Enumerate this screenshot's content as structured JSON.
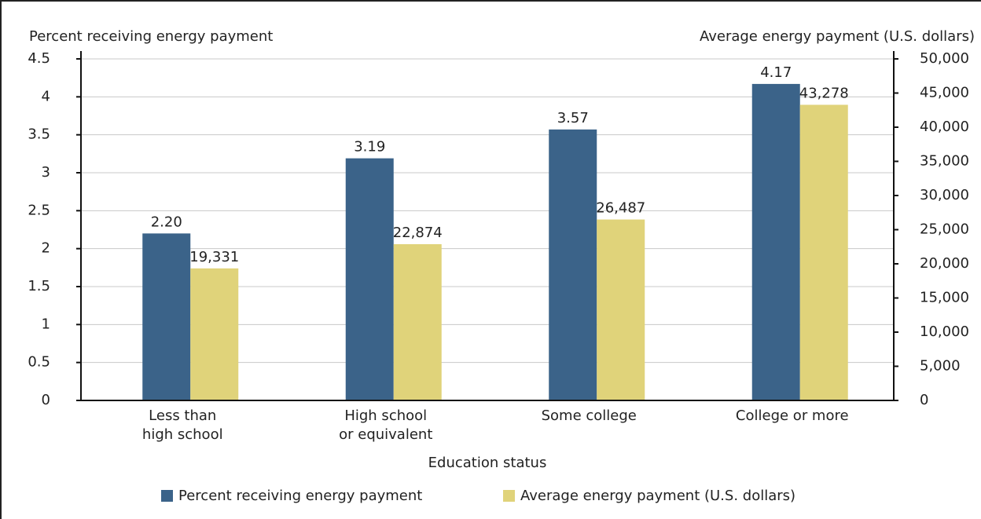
{
  "chart_data": {
    "type": "bar",
    "y_label": "Percent receiving energy payment",
    "y2_label": "Average energy payment (U.S. dollars)",
    "x_label": "Education status",
    "categories": [
      "Less than\nhigh school",
      "High school\nor equivalent",
      "Some college",
      "College or more"
    ],
    "series": [
      {
        "name": "Percent receiving energy payment",
        "color": "#3b6389",
        "values": [
          2.2,
          3.19,
          3.57,
          4.17
        ],
        "value_labels": [
          "2.20",
          "3.19",
          "3.57",
          "4.17"
        ]
      },
      {
        "name": "Average energy payment (U.S. dollars)",
        "color": "#e0d37a",
        "axis": "y2",
        "values": [
          19331,
          22874,
          26487,
          43278
        ],
        "value_labels": [
          "19,331",
          "22,874",
          "26,487",
          "43,278"
        ]
      }
    ],
    "ylim": [
      0,
      4.5
    ],
    "yticks": [
      0,
      0.5,
      1,
      1.5,
      2,
      2.5,
      3,
      3.5,
      4,
      4.5
    ],
    "y2lim": [
      0,
      50000
    ],
    "y2ticks": [
      0,
      {
        "value": 5000,
        "label": "5,000"
      },
      {
        "value": 10000,
        "label": "10,000"
      },
      {
        "value": 15000,
        "label": "15,000"
      },
      {
        "value": 20000,
        "label": "20,000"
      },
      {
        "value": 25000,
        "label": "25,000"
      },
      {
        "value": 30000,
        "label": "30,000"
      },
      {
        "value": 35000,
        "label": "35,000"
      },
      {
        "value": 40000,
        "label": "40,000"
      },
      {
        "value": 45000,
        "label": "45,000"
      },
      {
        "value": 50000,
        "label": "50,000"
      }
    ],
    "grid": true,
    "legend": "bottom"
  }
}
